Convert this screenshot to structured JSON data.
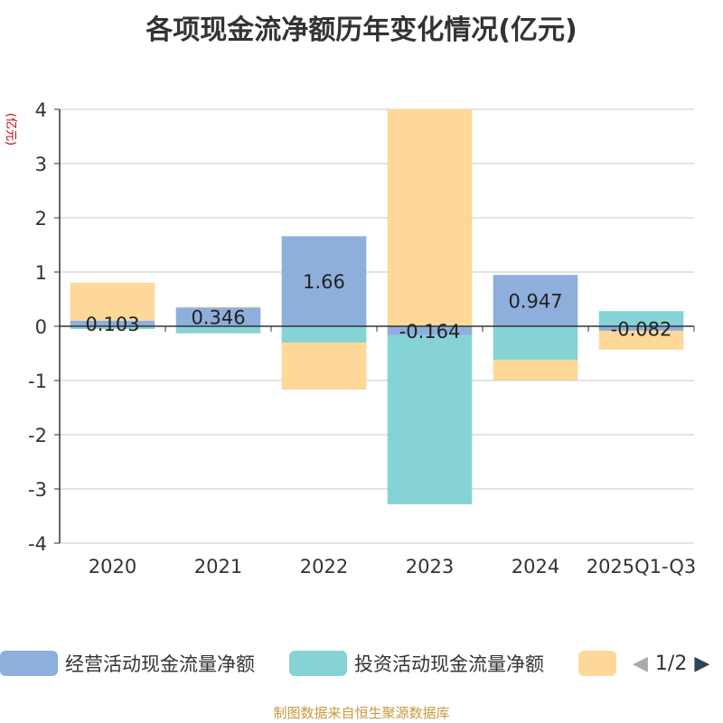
{
  "title": "各项现金流净额历年变化情况(亿元)",
  "source": "制图数据来自恒生聚源数据库",
  "pager": {
    "text": "1/2",
    "prev_icon": "triangle-left-icon",
    "next_icon": "triangle-right-icon"
  },
  "colors": {
    "operating": "#8eaedb",
    "investing": "#86d3d6",
    "financing": "#fed898",
    "axis": "#333333",
    "grid": "#c8c8c8",
    "ylabel": "#cc0000",
    "pager_disabled": "#aaaaaa",
    "pager_active": "#2f4554"
  },
  "chart_data": {
    "type": "bar",
    "stacked": true,
    "title": "各项现金流净额历年变化情况(亿元)",
    "ylabel": "(亿元)",
    "xlabel": "",
    "ylim": [
      -4,
      4
    ],
    "yticks": [
      -4,
      -3,
      -2,
      -1,
      0,
      1,
      2,
      3,
      4
    ],
    "grid": true,
    "legend_position": "bottom",
    "categories": [
      "2020",
      "2021",
      "2022",
      "2023",
      "2024",
      "2025Q1-Q3"
    ],
    "series": [
      {
        "name": "经营活动现金流量净额",
        "values": [
          0.103,
          0.346,
          1.66,
          -0.164,
          0.947,
          -0.082
        ],
        "labels": [
          "0.103",
          "0.346",
          "1.66",
          "-0.164",
          "0.947",
          "-0.082"
        ]
      },
      {
        "name": "投资活动现金流量净额",
        "values": [
          -0.05,
          -0.13,
          -0.3,
          -3.12,
          -0.62,
          0.28
        ]
      },
      {
        "name": "",
        "values": [
          0.7,
          0.01,
          -0.87,
          4.2,
          -0.37,
          -0.35
        ]
      }
    ]
  }
}
